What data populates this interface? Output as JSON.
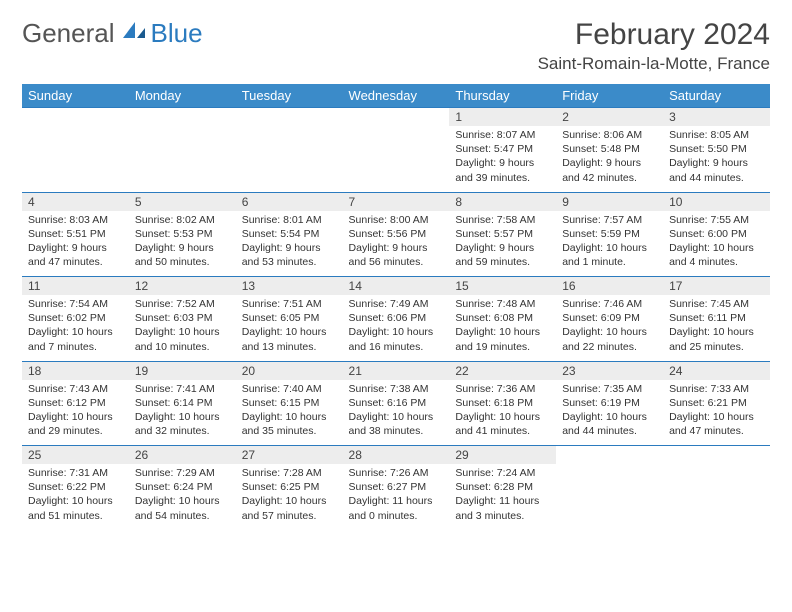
{
  "brand": {
    "part1": "General",
    "part2": "Blue"
  },
  "title": "February 2024",
  "location": "Saint-Romain-la-Motte, France",
  "colors": {
    "header_bg": "#3b8bc9",
    "header_text": "#ffffff",
    "daynum_bg": "#ededed",
    "border": "#2b7bbf",
    "text": "#333333",
    "brand_blue": "#2b7bbf",
    "brand_gray": "#555555"
  },
  "weekdays": [
    "Sunday",
    "Monday",
    "Tuesday",
    "Wednesday",
    "Thursday",
    "Friday",
    "Saturday"
  ],
  "weeks": [
    [
      null,
      null,
      null,
      null,
      {
        "n": "1",
        "sr": "Sunrise: 8:07 AM",
        "ss": "Sunset: 5:47 PM",
        "dl": "Daylight: 9 hours and 39 minutes."
      },
      {
        "n": "2",
        "sr": "Sunrise: 8:06 AM",
        "ss": "Sunset: 5:48 PM",
        "dl": "Daylight: 9 hours and 42 minutes."
      },
      {
        "n": "3",
        "sr": "Sunrise: 8:05 AM",
        "ss": "Sunset: 5:50 PM",
        "dl": "Daylight: 9 hours and 44 minutes."
      }
    ],
    [
      {
        "n": "4",
        "sr": "Sunrise: 8:03 AM",
        "ss": "Sunset: 5:51 PM",
        "dl": "Daylight: 9 hours and 47 minutes."
      },
      {
        "n": "5",
        "sr": "Sunrise: 8:02 AM",
        "ss": "Sunset: 5:53 PM",
        "dl": "Daylight: 9 hours and 50 minutes."
      },
      {
        "n": "6",
        "sr": "Sunrise: 8:01 AM",
        "ss": "Sunset: 5:54 PM",
        "dl": "Daylight: 9 hours and 53 minutes."
      },
      {
        "n": "7",
        "sr": "Sunrise: 8:00 AM",
        "ss": "Sunset: 5:56 PM",
        "dl": "Daylight: 9 hours and 56 minutes."
      },
      {
        "n": "8",
        "sr": "Sunrise: 7:58 AM",
        "ss": "Sunset: 5:57 PM",
        "dl": "Daylight: 9 hours and 59 minutes."
      },
      {
        "n": "9",
        "sr": "Sunrise: 7:57 AM",
        "ss": "Sunset: 5:59 PM",
        "dl": "Daylight: 10 hours and 1 minute."
      },
      {
        "n": "10",
        "sr": "Sunrise: 7:55 AM",
        "ss": "Sunset: 6:00 PM",
        "dl": "Daylight: 10 hours and 4 minutes."
      }
    ],
    [
      {
        "n": "11",
        "sr": "Sunrise: 7:54 AM",
        "ss": "Sunset: 6:02 PM",
        "dl": "Daylight: 10 hours and 7 minutes."
      },
      {
        "n": "12",
        "sr": "Sunrise: 7:52 AM",
        "ss": "Sunset: 6:03 PM",
        "dl": "Daylight: 10 hours and 10 minutes."
      },
      {
        "n": "13",
        "sr": "Sunrise: 7:51 AM",
        "ss": "Sunset: 6:05 PM",
        "dl": "Daylight: 10 hours and 13 minutes."
      },
      {
        "n": "14",
        "sr": "Sunrise: 7:49 AM",
        "ss": "Sunset: 6:06 PM",
        "dl": "Daylight: 10 hours and 16 minutes."
      },
      {
        "n": "15",
        "sr": "Sunrise: 7:48 AM",
        "ss": "Sunset: 6:08 PM",
        "dl": "Daylight: 10 hours and 19 minutes."
      },
      {
        "n": "16",
        "sr": "Sunrise: 7:46 AM",
        "ss": "Sunset: 6:09 PM",
        "dl": "Daylight: 10 hours and 22 minutes."
      },
      {
        "n": "17",
        "sr": "Sunrise: 7:45 AM",
        "ss": "Sunset: 6:11 PM",
        "dl": "Daylight: 10 hours and 25 minutes."
      }
    ],
    [
      {
        "n": "18",
        "sr": "Sunrise: 7:43 AM",
        "ss": "Sunset: 6:12 PM",
        "dl": "Daylight: 10 hours and 29 minutes."
      },
      {
        "n": "19",
        "sr": "Sunrise: 7:41 AM",
        "ss": "Sunset: 6:14 PM",
        "dl": "Daylight: 10 hours and 32 minutes."
      },
      {
        "n": "20",
        "sr": "Sunrise: 7:40 AM",
        "ss": "Sunset: 6:15 PM",
        "dl": "Daylight: 10 hours and 35 minutes."
      },
      {
        "n": "21",
        "sr": "Sunrise: 7:38 AM",
        "ss": "Sunset: 6:16 PM",
        "dl": "Daylight: 10 hours and 38 minutes."
      },
      {
        "n": "22",
        "sr": "Sunrise: 7:36 AM",
        "ss": "Sunset: 6:18 PM",
        "dl": "Daylight: 10 hours and 41 minutes."
      },
      {
        "n": "23",
        "sr": "Sunrise: 7:35 AM",
        "ss": "Sunset: 6:19 PM",
        "dl": "Daylight: 10 hours and 44 minutes."
      },
      {
        "n": "24",
        "sr": "Sunrise: 7:33 AM",
        "ss": "Sunset: 6:21 PM",
        "dl": "Daylight: 10 hours and 47 minutes."
      }
    ],
    [
      {
        "n": "25",
        "sr": "Sunrise: 7:31 AM",
        "ss": "Sunset: 6:22 PM",
        "dl": "Daylight: 10 hours and 51 minutes."
      },
      {
        "n": "26",
        "sr": "Sunrise: 7:29 AM",
        "ss": "Sunset: 6:24 PM",
        "dl": "Daylight: 10 hours and 54 minutes."
      },
      {
        "n": "27",
        "sr": "Sunrise: 7:28 AM",
        "ss": "Sunset: 6:25 PM",
        "dl": "Daylight: 10 hours and 57 minutes."
      },
      {
        "n": "28",
        "sr": "Sunrise: 7:26 AM",
        "ss": "Sunset: 6:27 PM",
        "dl": "Daylight: 11 hours and 0 minutes."
      },
      {
        "n": "29",
        "sr": "Sunrise: 7:24 AM",
        "ss": "Sunset: 6:28 PM",
        "dl": "Daylight: 11 hours and 3 minutes."
      },
      null,
      null
    ]
  ]
}
